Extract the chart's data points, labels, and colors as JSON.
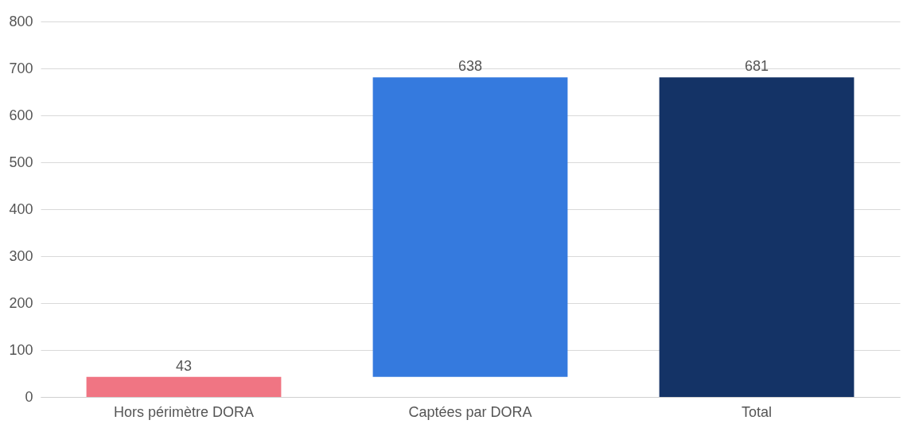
{
  "chart_data": {
    "type": "bar",
    "categories": [
      "Hors périmètre DORA",
      "Captées par DORA",
      "Total"
    ],
    "values": [
      43,
      638,
      681
    ],
    "base": [
      0,
      43,
      0
    ],
    "colors": [
      "#f07583",
      "#357ade",
      "#143366"
    ],
    "ylim": [
      0,
      800
    ],
    "yticks": [
      0,
      100,
      200,
      300,
      400,
      500,
      600,
      700,
      800
    ],
    "grid": "y",
    "data_labels": true
  }
}
